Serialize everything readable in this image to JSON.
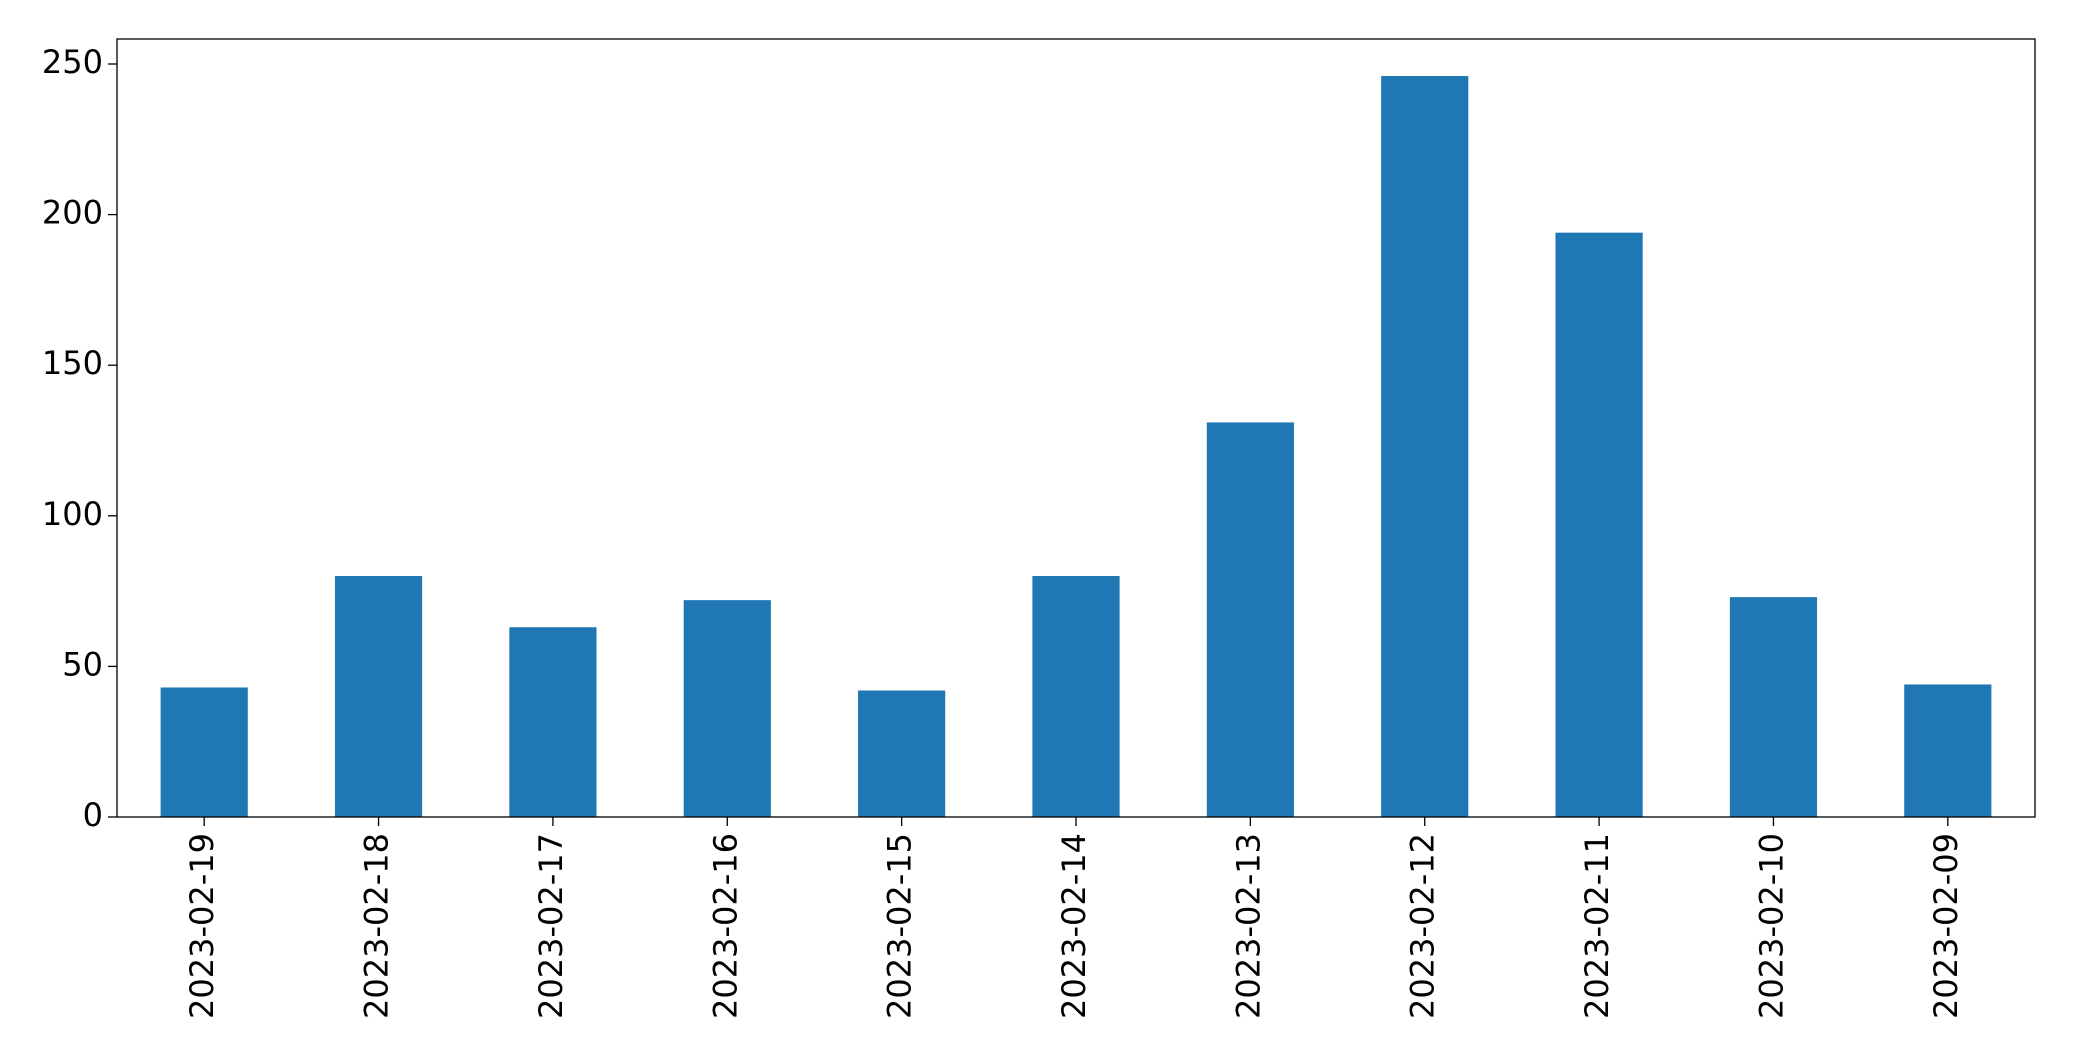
{
  "chart_data": {
    "type": "bar",
    "categories": [
      "2023-02-19",
      "2023-02-18",
      "2023-02-17",
      "2023-02-16",
      "2023-02-15",
      "2023-02-14",
      "2023-02-13",
      "2023-02-12",
      "2023-02-11",
      "2023-02-10",
      "2023-02-09"
    ],
    "values": [
      43,
      80,
      63,
      72,
      42,
      80,
      131,
      246,
      194,
      73,
      44
    ],
    "color": "#1f77b4",
    "ylim": [
      0,
      258.3
    ],
    "yticks": [
      0,
      50,
      100,
      150,
      200,
      250
    ],
    "grid": false
  }
}
